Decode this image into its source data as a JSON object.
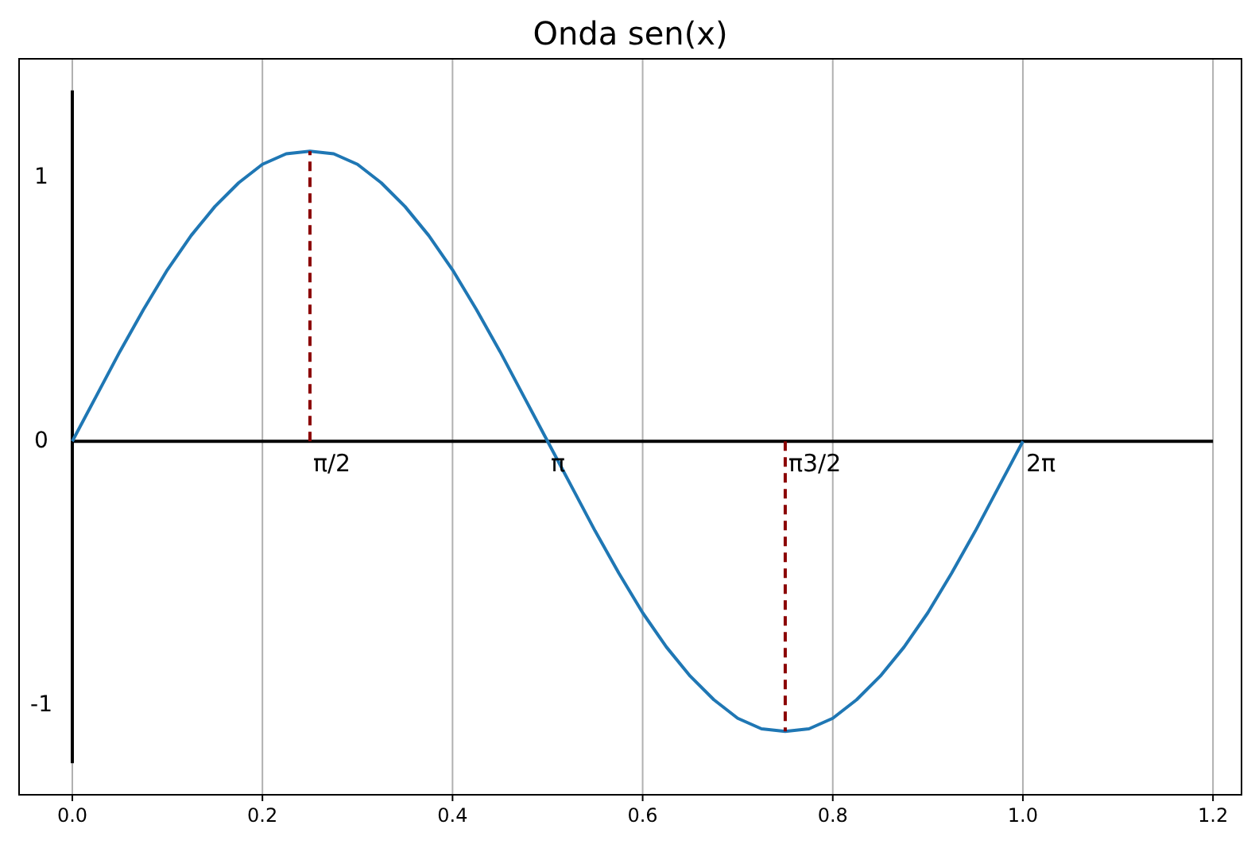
{
  "chart_data": {
    "type": "line",
    "title": "Onda sen(x)",
    "xlim": [
      -0.056,
      1.23
    ],
    "ylim": [
      -1.34,
      1.45
    ],
    "xticks": [
      {
        "value": 0,
        "label": "0.0"
      },
      {
        "value": 0.2,
        "label": "0.2"
      },
      {
        "value": 0.4,
        "label": "0.4"
      },
      {
        "value": 0.6,
        "label": "0.6"
      },
      {
        "value": 0.8,
        "label": "0.8"
      },
      {
        "value": 1,
        "label": "1.0"
      },
      {
        "value": 1.2,
        "label": "1.2"
      }
    ],
    "yticks": [
      1,
      0,
      -1
    ],
    "grid": "x",
    "series": [
      {
        "color": "#000000",
        "x": [
          0,
          1.2
        ],
        "values": [
          0,
          0
        ]
      },
      {
        "color": "#000000",
        "x": [
          0,
          0
        ],
        "values": [
          1.33,
          -1.22
        ]
      },
      {
        "color": "#1f77b4",
        "x": [
          0,
          0.025,
          0.05,
          0.075,
          0.1,
          0.125,
          0.15,
          0.175,
          0.2,
          0.225,
          0.25,
          0.275,
          0.3,
          0.325,
          0.35,
          0.375,
          0.4,
          0.425,
          0.45,
          0.475,
          0.5,
          0.525,
          0.55,
          0.575,
          0.6,
          0.625,
          0.65,
          0.675,
          0.7,
          0.725,
          0.75,
          0.775,
          0.8,
          0.825,
          0.85,
          0.875,
          0.9,
          0.925,
          0.95,
          0.975,
          1
        ],
        "values": [
          0,
          0.17,
          0.34,
          0.5,
          0.65,
          0.78,
          0.89,
          0.98,
          1.05,
          1.09,
          1.1,
          1.09,
          1.05,
          0.98,
          0.89,
          0.78,
          0.65,
          0.5,
          0.34,
          0.17,
          0,
          -0.17,
          -0.34,
          -0.5,
          -0.65,
          -0.78,
          -0.89,
          -0.98,
          -1.05,
          -1.09,
          -1.1,
          -1.09,
          -1.05,
          -0.98,
          -0.89,
          -0.78,
          -0.65,
          -0.5,
          -0.34,
          -0.17,
          0
        ]
      },
      {
        "color": "#8b0000",
        "line_style": "dashed",
        "x": [
          0.25,
          0.25
        ],
        "values": [
          0,
          1.1
        ]
      },
      {
        "color": "#8b0000",
        "line_style": "dashed",
        "x": [
          0.75,
          0.75
        ],
        "values": [
          0,
          -1.1
        ]
      }
    ],
    "annotations": [
      {
        "text": "π/2",
        "x": 0.25,
        "y": 0
      },
      {
        "text": "π",
        "x": 0.5,
        "y": 0
      },
      {
        "text": "π3/2",
        "x": 0.75,
        "y": 0
      },
      {
        "text": "2π",
        "x": 1,
        "y": 0
      }
    ]
  }
}
